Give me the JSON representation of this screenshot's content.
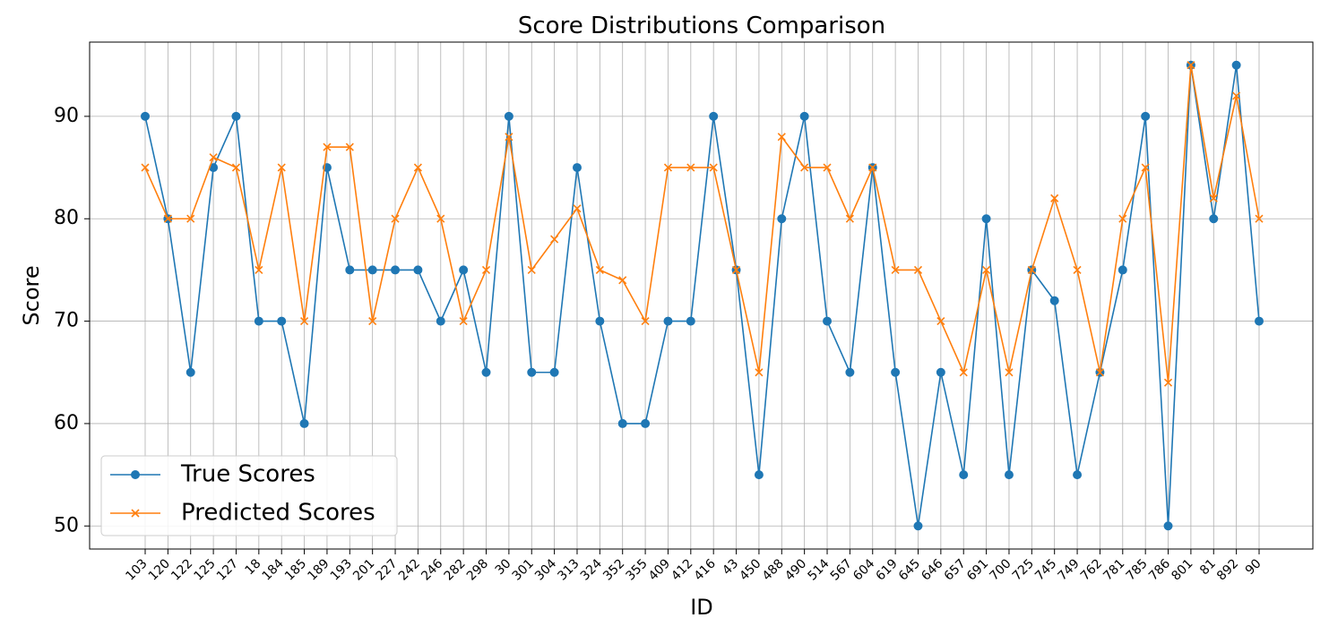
{
  "chart_data": {
    "type": "line",
    "title": "Score Distributions Comparison",
    "xlabel": "ID",
    "ylabel": "Score",
    "ylim": [
      47.75,
      97.25
    ],
    "yticks": [
      50,
      60,
      70,
      80,
      90
    ],
    "grid": true,
    "legend_position": "bottom-left",
    "categories": [
      "103",
      "120",
      "122",
      "125",
      "127",
      "18",
      "184",
      "185",
      "189",
      "193",
      "201",
      "227",
      "242",
      "246",
      "282",
      "298",
      "30",
      "301",
      "304",
      "313",
      "324",
      "352",
      "355",
      "409",
      "412",
      "416",
      "43",
      "450",
      "488",
      "490",
      "514",
      "567",
      "604",
      "619",
      "645",
      "646",
      "657",
      "691",
      "700",
      "725",
      "745",
      "749",
      "762",
      "781",
      "785",
      "786",
      "801",
      "81",
      "892",
      "90"
    ],
    "series": [
      {
        "name": "True Scores",
        "color": "#1f77b4",
        "marker": "circle",
        "values": [
          90,
          80,
          65,
          85,
          90,
          70,
          70,
          60,
          85,
          75,
          75,
          75,
          75,
          70,
          75,
          65,
          90,
          65,
          65,
          85,
          70,
          60,
          60,
          70,
          70,
          90,
          75,
          55,
          80,
          90,
          70,
          65,
          85,
          65,
          50,
          65,
          55,
          80,
          55,
          75,
          72,
          55,
          65,
          75,
          90,
          50,
          95,
          80,
          95,
          70
        ]
      },
      {
        "name": "Predicted Scores",
        "color": "#ff7f0e",
        "marker": "x",
        "values": [
          85,
          80,
          80,
          86,
          85,
          75,
          85,
          70,
          87,
          87,
          70,
          80,
          85,
          80,
          70,
          75,
          88,
          75,
          78,
          81,
          75,
          74,
          70,
          85,
          85,
          85,
          75,
          65,
          88,
          85,
          85,
          80,
          85,
          75,
          75,
          70,
          65,
          75,
          65,
          75,
          82,
          75,
          65,
          80,
          85,
          64,
          95,
          82,
          92,
          80
        ]
      }
    ]
  }
}
